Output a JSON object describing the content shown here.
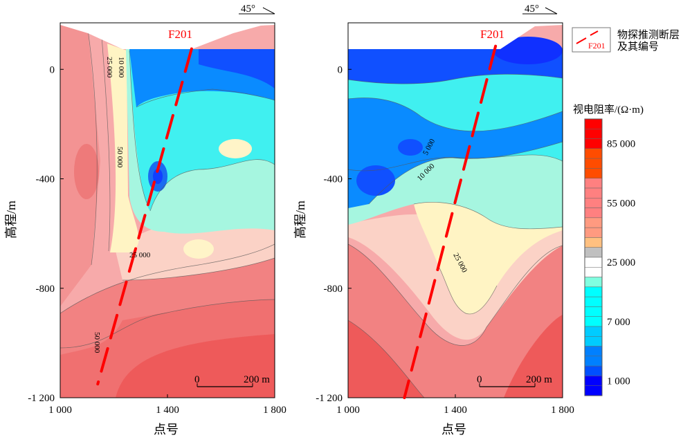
{
  "chart_data": [
    {
      "type": "heatmap",
      "subtype": "contour",
      "panel": "left",
      "xlabel": "点号",
      "ylabel": "高程/m",
      "xlim": [
        1000,
        1800
      ],
      "ylim": [
        -1200,
        170
      ],
      "xticks": [
        {
          "v": 1000,
          "label": "1 000"
        },
        {
          "v": 1400,
          "label": "1 400"
        },
        {
          "v": 1800,
          "label": "1 800"
        }
      ],
      "yticks": [
        {
          "v": 0,
          "label": "0"
        },
        {
          "v": -400,
          "label": "-400"
        },
        {
          "v": -800,
          "label": "-800"
        },
        {
          "v": -1200,
          "label": "-1 200"
        }
      ],
      "fault": {
        "label": "F201",
        "from": [
          1490,
          75
        ],
        "to": [
          1140,
          -1150
        ]
      },
      "contour_labels": [
        "25 000",
        "10 000",
        "50 000",
        "25 000",
        "50 000"
      ],
      "scale_bar": {
        "start": "0",
        "end": "200 m"
      },
      "orientation": "45°"
    },
    {
      "type": "heatmap",
      "subtype": "contour",
      "panel": "right",
      "xlabel": "点号",
      "ylabel": "高程/m",
      "xlim": [
        1000,
        1800
      ],
      "ylim": [
        -1200,
        170
      ],
      "xticks": [
        {
          "v": 1000,
          "label": "1 000"
        },
        {
          "v": 1400,
          "label": "1 400"
        },
        {
          "v": 1800,
          "label": "1 800"
        }
      ],
      "yticks": [
        {
          "v": 0,
          "label": "0"
        },
        {
          "v": -400,
          "label": "-400"
        },
        {
          "v": -800,
          "label": "-800"
        },
        {
          "v": -1200,
          "label": "-1 200"
        }
      ],
      "fault": {
        "label": "F201",
        "from": [
          1550,
          85
        ],
        "to": [
          1210,
          -1200
        ]
      },
      "contour_labels": [
        "5 000",
        "10 000",
        "25 000"
      ],
      "scale_bar": {
        "start": "0",
        "end": "200 m"
      },
      "orientation": "45°"
    }
  ],
  "legend": {
    "fault_sample_label": "F201",
    "fault_line1": "物探推测断层",
    "fault_line2": "及其编号",
    "colorbar_title": "视电阻率/(Ω·m)",
    "colorbar_ticks": [
      "85 000",
      "55 000",
      "25 000",
      "7 000",
      "1 000"
    ],
    "colorbar_colors": [
      "#ff0000",
      "#ff0000",
      "#ff0000",
      "#ff4c00",
      "#ff4c00",
      "#ff4c00",
      "#ff8080",
      "#ff8080",
      "#ff8080",
      "#ff8080",
      "#ff9a80",
      "#ff9a80",
      "#ffc080",
      "#c0c0c0",
      "#ffffff",
      "#ffffff",
      "#80ffe0",
      "#00ffff",
      "#00ffff",
      "#00ffff",
      "#00ffff",
      "#00ccff",
      "#00ccff",
      "#0080ff",
      "#0080ff",
      "#0050ff",
      "#0000ff",
      "#0000ff"
    ],
    "fault_color": "#ff0000"
  }
}
